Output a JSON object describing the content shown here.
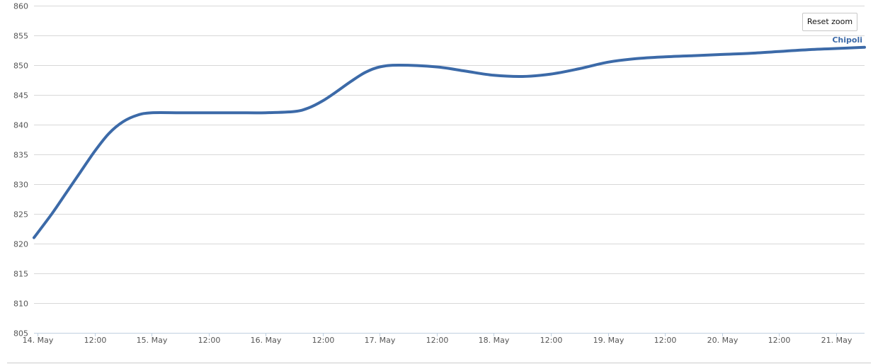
{
  "toolbar": {
    "reset_zoom_label": "Reset zoom"
  },
  "chart_data": {
    "type": "line",
    "title": "",
    "xlabel": "",
    "ylabel": "",
    "ylim": [
      805,
      860
    ],
    "y_ticks": [
      805,
      810,
      815,
      820,
      825,
      830,
      835,
      840,
      845,
      850,
      855,
      860
    ],
    "xlim": [
      "2014-05-13T23:15",
      "2014-05-21T06:00"
    ],
    "x_ticks": [
      {
        "at": "2014-05-14T00:00",
        "label": "14. May"
      },
      {
        "at": "2014-05-14T12:00",
        "label": "12:00"
      },
      {
        "at": "2014-05-15T00:00",
        "label": "15. May"
      },
      {
        "at": "2014-05-15T12:00",
        "label": "12:00"
      },
      {
        "at": "2014-05-16T00:00",
        "label": "16. May"
      },
      {
        "at": "2014-05-16T12:00",
        "label": "12:00"
      },
      {
        "at": "2014-05-17T00:00",
        "label": "17. May"
      },
      {
        "at": "2014-05-17T12:00",
        "label": "12:00"
      },
      {
        "at": "2014-05-18T00:00",
        "label": "18. May"
      },
      {
        "at": "2014-05-18T12:00",
        "label": "12:00"
      },
      {
        "at": "2014-05-19T00:00",
        "label": "19. May"
      },
      {
        "at": "2014-05-19T12:00",
        "label": "12:00"
      },
      {
        "at": "2014-05-20T00:00",
        "label": "20. May"
      },
      {
        "at": "2014-05-20T12:00",
        "label": "12:00"
      },
      {
        "at": "2014-05-21T00:00",
        "label": "21. May"
      }
    ],
    "grid": true,
    "line_color": "#3c6aa8",
    "series": [
      {
        "name": "Chipoli",
        "points": [
          {
            "x": "2014-05-13T23:15",
            "y": 821.0
          },
          {
            "x": "2014-05-14T03:00",
            "y": 825.0
          },
          {
            "x": "2014-05-14T06:00",
            "y": 828.5
          },
          {
            "x": "2014-05-14T09:00",
            "y": 832.0
          },
          {
            "x": "2014-05-14T12:00",
            "y": 835.5
          },
          {
            "x": "2014-05-14T15:00",
            "y": 838.5
          },
          {
            "x": "2014-05-14T18:00",
            "y": 840.5
          },
          {
            "x": "2014-05-14T21:00",
            "y": 841.6
          },
          {
            "x": "2014-05-15T00:00",
            "y": 842.0
          },
          {
            "x": "2014-05-15T06:00",
            "y": 842.0
          },
          {
            "x": "2014-05-15T12:00",
            "y": 842.0
          },
          {
            "x": "2014-05-15T18:00",
            "y": 842.0
          },
          {
            "x": "2014-05-16T00:00",
            "y": 842.0
          },
          {
            "x": "2014-05-16T06:00",
            "y": 842.2
          },
          {
            "x": "2014-05-16T09:00",
            "y": 842.8
          },
          {
            "x": "2014-05-16T12:00",
            "y": 844.0
          },
          {
            "x": "2014-05-16T15:00",
            "y": 845.6
          },
          {
            "x": "2014-05-16T18:00",
            "y": 847.3
          },
          {
            "x": "2014-05-16T21:00",
            "y": 848.8
          },
          {
            "x": "2014-05-17T00:00",
            "y": 849.7
          },
          {
            "x": "2014-05-17T04:00",
            "y": 850.0
          },
          {
            "x": "2014-05-17T12:00",
            "y": 849.7
          },
          {
            "x": "2014-05-17T18:00",
            "y": 849.0
          },
          {
            "x": "2014-05-18T00:00",
            "y": 848.3
          },
          {
            "x": "2014-05-18T06:00",
            "y": 848.1
          },
          {
            "x": "2014-05-18T12:00",
            "y": 848.5
          },
          {
            "x": "2014-05-18T18:00",
            "y": 849.4
          },
          {
            "x": "2014-05-19T00:00",
            "y": 850.5
          },
          {
            "x": "2014-05-19T06:00",
            "y": 851.1
          },
          {
            "x": "2014-05-19T12:00",
            "y": 851.4
          },
          {
            "x": "2014-05-19T18:00",
            "y": 851.6
          },
          {
            "x": "2014-05-20T00:00",
            "y": 851.8
          },
          {
            "x": "2014-05-20T06:00",
            "y": 852.0
          },
          {
            "x": "2014-05-20T12:00",
            "y": 852.3
          },
          {
            "x": "2014-05-20T18:00",
            "y": 852.6
          },
          {
            "x": "2014-05-21T00:00",
            "y": 852.8
          },
          {
            "x": "2014-05-21T06:00",
            "y": 853.0
          }
        ]
      }
    ]
  }
}
